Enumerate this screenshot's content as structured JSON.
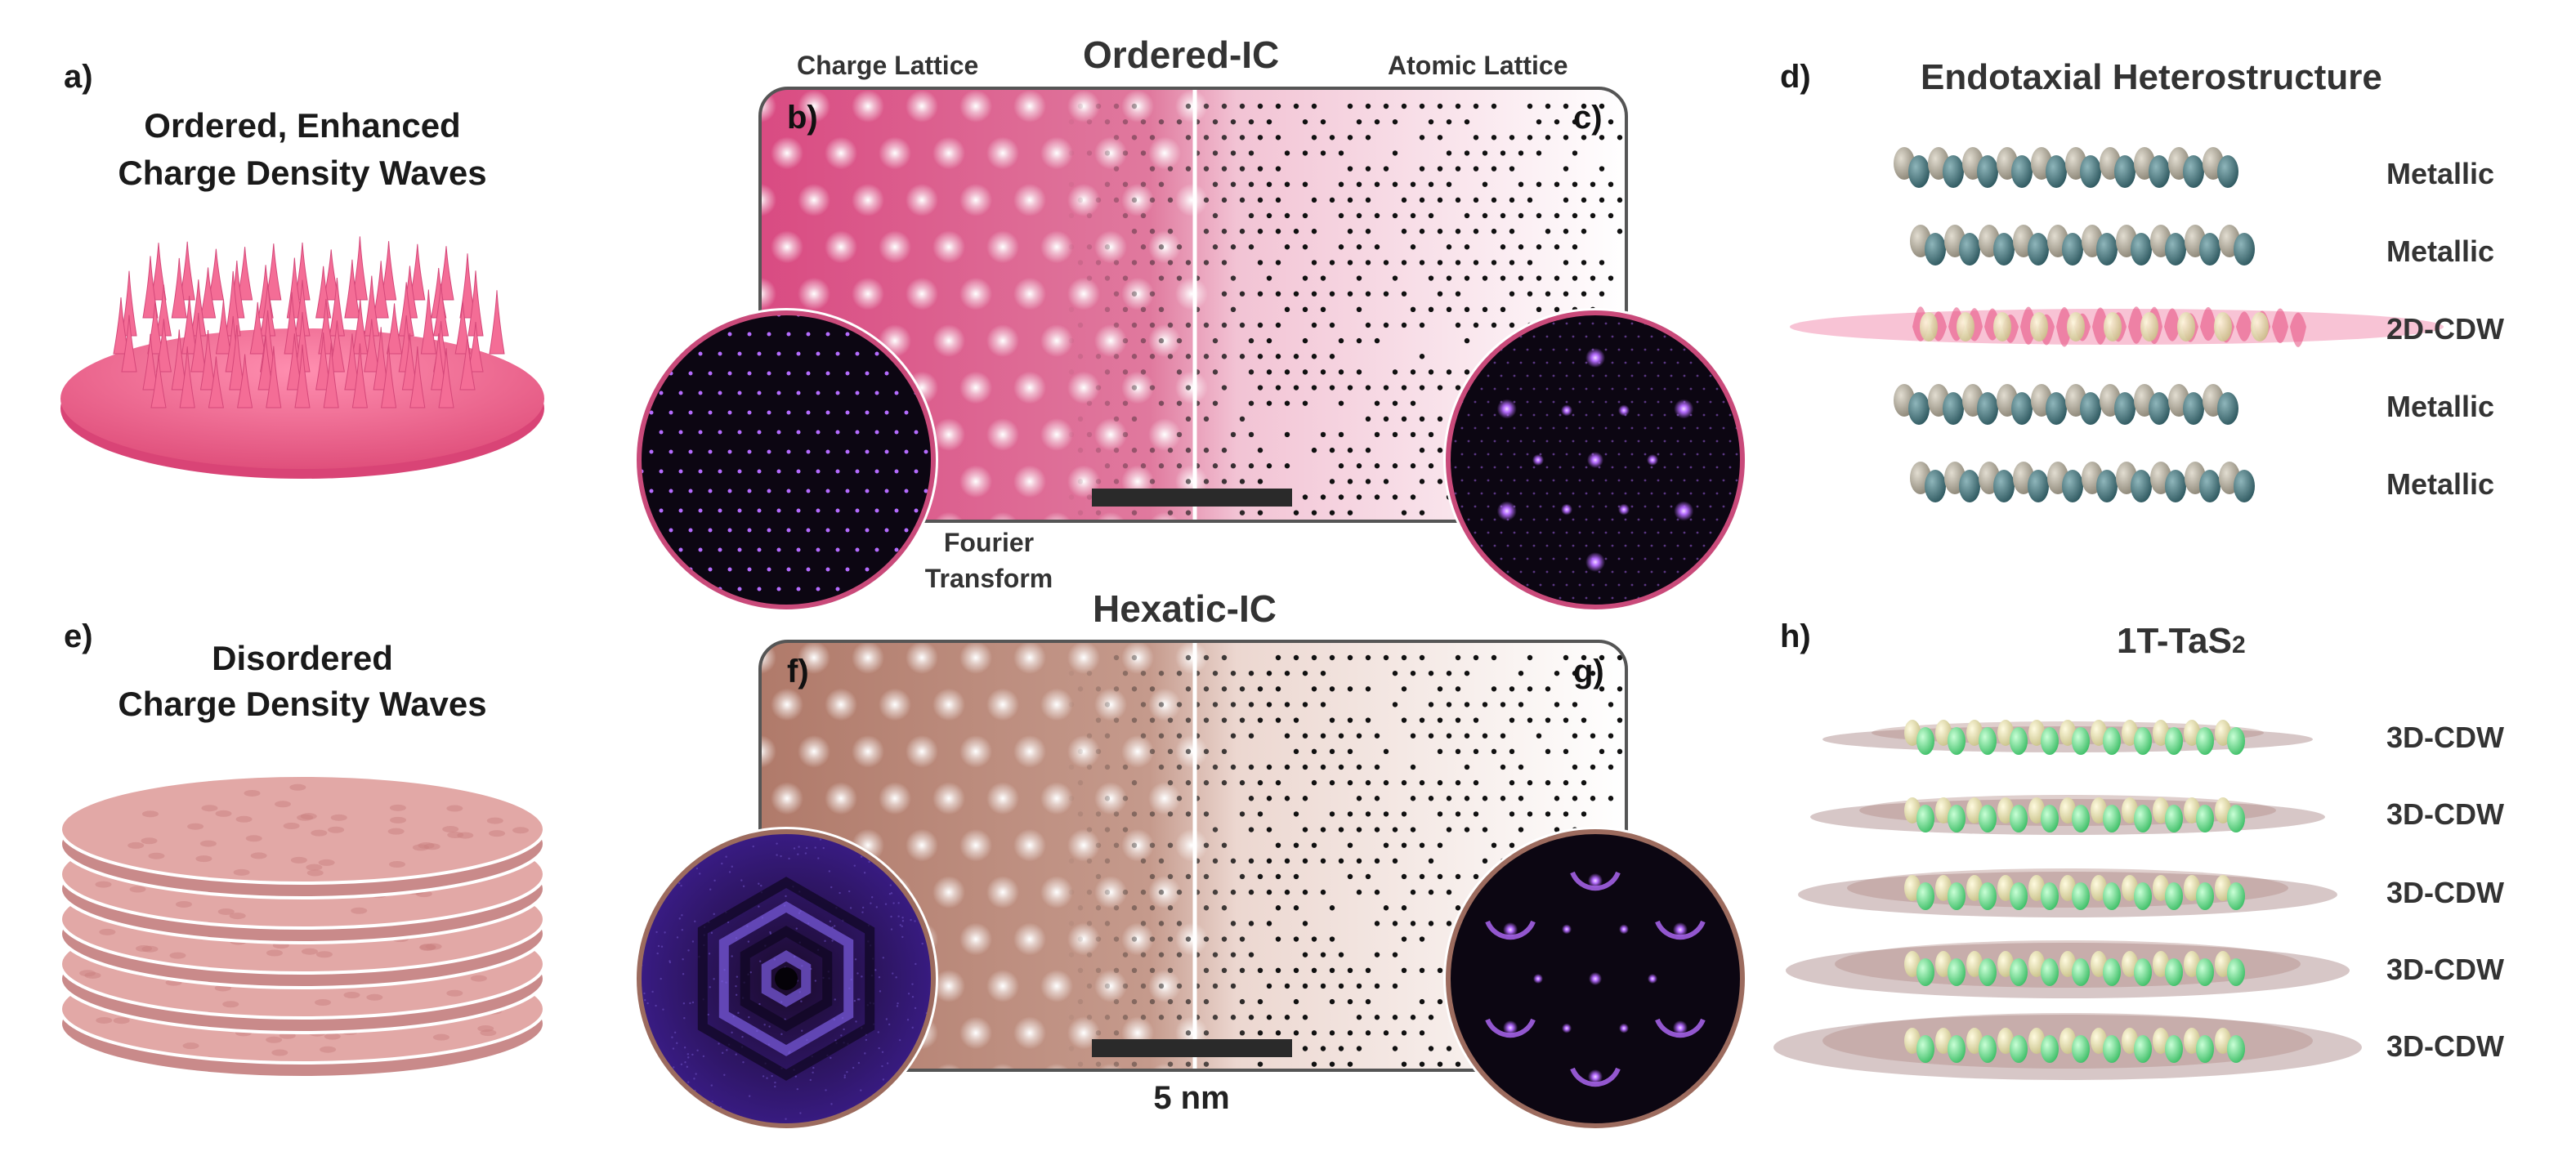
{
  "colors": {
    "ordered_pink": "#d94b82",
    "ordered_pink_light": "#f7d3e0",
    "hexatic_brown": "#b07a6a",
    "hexatic_brown_light": "#ecd7d0",
    "fft_dark": "#120a1a",
    "fft_purple": "#3b1d8a",
    "fft_spot": "#b56cff",
    "metal_teal": "#3f6e75",
    "metal_gray": "#a8a294",
    "cdw_pink": "#f07aa2",
    "sulfur_yellow": "#e6e0a8",
    "tas2_green": "#7be39a"
  },
  "panel_a": {
    "letter": "a)",
    "title_line1": "Ordered, Enhanced",
    "title_line2": "Charge Density Waves"
  },
  "panel_e": {
    "letter": "e)",
    "title_line1": "Disordered",
    "title_line2": "Charge Density Waves"
  },
  "middle_top": {
    "title": "Ordered-IC",
    "left_label": "Charge Lattice",
    "right_label": "Atomic Lattice",
    "letter_left": "b)",
    "letter_right": "c)",
    "fourier_line1": "Fourier",
    "fourier_line2": "Transform"
  },
  "middle_bottom": {
    "title": "Hexatic-IC",
    "letter_left": "f)",
    "letter_right": "g)",
    "scale_label": "5 nm"
  },
  "panel_d": {
    "letter": "d)",
    "title": "Endotaxial Heterostructure",
    "layers": [
      "Metallic",
      "Metallic",
      "2D-CDW",
      "Metallic",
      "Metallic"
    ]
  },
  "panel_h": {
    "letter": "h)",
    "title_main": "1T-TaS",
    "title_sub": "2",
    "layers": [
      "3D-CDW",
      "3D-CDW",
      "3D-CDW",
      "3D-CDW",
      "3D-CDW"
    ]
  }
}
